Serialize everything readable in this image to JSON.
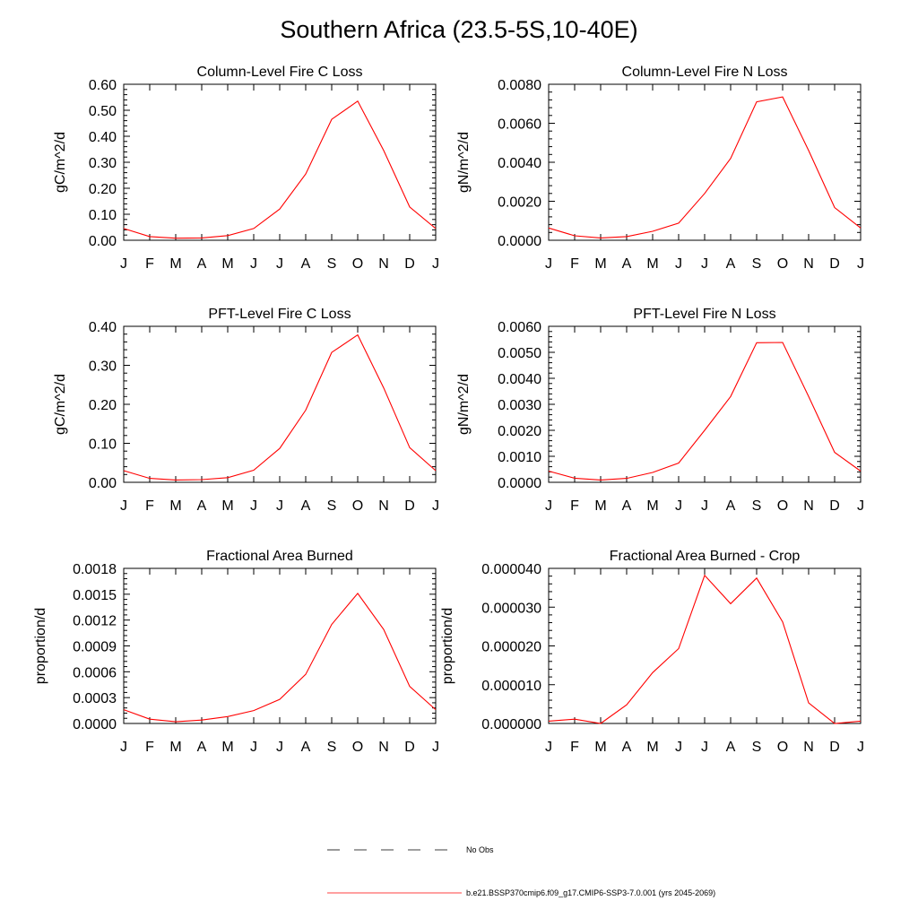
{
  "figure": {
    "title": "Southern Africa (23.5-5S,10-40E)",
    "line_color": "#ff0000",
    "obs_color": "#000000"
  },
  "legend": {
    "items": [
      {
        "label": "No Obs",
        "style": "dashed"
      },
      {
        "label": "b.e21.BSSP370cmip6.f09_g17.CMIP6-SSP3-7.0.001 (yrs 2045-2069)",
        "style": "solid-red"
      }
    ]
  },
  "chart_data": [
    {
      "type": "line",
      "title": "Column-Level Fire C Loss",
      "ylabel": "gC/m^2/d",
      "xlabel": "",
      "categories": [
        "J",
        "F",
        "M",
        "A",
        "M",
        "J",
        "J",
        "A",
        "S",
        "O",
        "N",
        "D",
        "J"
      ],
      "ylim": [
        0,
        0.6
      ],
      "yticks": [
        "0.00",
        "0.10",
        "0.20",
        "0.30",
        "0.40",
        "0.50",
        "0.60"
      ],
      "series": [
        {
          "values": [
            0.045,
            0.014,
            0.008,
            0.009,
            0.018,
            0.045,
            0.12,
            0.255,
            0.465,
            0.535,
            0.345,
            0.128,
            0.045
          ]
        }
      ]
    },
    {
      "type": "line",
      "title": "Column-Level Fire N Loss",
      "ylabel": "gN/m^2/d",
      "xlabel": "",
      "categories": [
        "J",
        "F",
        "M",
        "A",
        "M",
        "J",
        "J",
        "A",
        "S",
        "O",
        "N",
        "D",
        "J"
      ],
      "ylim": [
        0,
        0.008
      ],
      "yticks": [
        "0.0000",
        "0.0020",
        "0.0040",
        "0.0060",
        "0.0080"
      ],
      "series": [
        {
          "values": [
            0.00063,
            0.00023,
            0.00012,
            0.00019,
            0.00046,
            0.00088,
            0.0024,
            0.0042,
            0.0071,
            0.00735,
            0.0046,
            0.00168,
            0.00063
          ]
        }
      ]
    },
    {
      "type": "line",
      "title": "PFT-Level Fire C Loss",
      "ylabel": "gC/m^2/d",
      "xlabel": "",
      "categories": [
        "J",
        "F",
        "M",
        "A",
        "M",
        "J",
        "J",
        "A",
        "S",
        "O",
        "N",
        "D",
        "J"
      ],
      "ylim": [
        0,
        0.4
      ],
      "yticks": [
        "0.00",
        "0.10",
        "0.20",
        "0.30",
        "0.40"
      ],
      "series": [
        {
          "values": [
            0.03,
            0.01,
            0.006,
            0.007,
            0.012,
            0.031,
            0.087,
            0.185,
            0.333,
            0.378,
            0.242,
            0.089,
            0.03
          ]
        }
      ]
    },
    {
      "type": "line",
      "title": "PFT-Level Fire N Loss",
      "ylabel": "gN/m^2/d",
      "xlabel": "",
      "categories": [
        "J",
        "F",
        "M",
        "A",
        "M",
        "J",
        "J",
        "A",
        "S",
        "O",
        "N",
        "D",
        "J"
      ],
      "ylim": [
        0,
        0.006
      ],
      "yticks": [
        "0.0000",
        "0.0010",
        "0.0020",
        "0.0030",
        "0.0040",
        "0.0050",
        "0.0060"
      ],
      "series": [
        {
          "values": [
            0.00043,
            0.00016,
            9e-05,
            0.00015,
            0.00038,
            0.00074,
            0.002,
            0.0033,
            0.00537,
            0.00538,
            0.0033,
            0.00115,
            0.00043
          ]
        }
      ]
    },
    {
      "type": "line",
      "title": "Fractional Area Burned",
      "ylabel": "proportion/d",
      "xlabel": "",
      "categories": [
        "J",
        "F",
        "M",
        "A",
        "M",
        "J",
        "J",
        "A",
        "S",
        "O",
        "N",
        "D",
        "J"
      ],
      "ylim": [
        0,
        0.0018
      ],
      "yticks": [
        "0.0000",
        "0.0003",
        "0.0006",
        "0.0009",
        "0.0012",
        "0.0015",
        "0.0018"
      ],
      "series": [
        {
          "values": [
            0.00016,
            5e-05,
            2e-05,
            4e-05,
            8e-05,
            0.00015,
            0.00028,
            0.00057,
            0.00115,
            0.00151,
            0.00109,
            0.00043,
            0.00016
          ]
        }
      ]
    },
    {
      "type": "line",
      "title": "Fractional Area Burned - Crop",
      "ylabel": "proportion/d",
      "xlabel": "",
      "categories": [
        "J",
        "F",
        "M",
        "A",
        "M",
        "J",
        "J",
        "A",
        "S",
        "O",
        "N",
        "D",
        "J"
      ],
      "ylim": [
        0,
        4e-05
      ],
      "yticks": [
        "0.000000",
        "0.000010",
        "0.000020",
        "0.000030",
        "0.000040"
      ],
      "series": [
        {
          "values": [
            6e-07,
            1.1e-06,
            0.0,
            4.8e-06,
            1.31e-05,
            1.93e-05,
            3.82e-05,
            3.09e-05,
            3.75e-05,
            2.62e-05,
            5.3e-06,
            0.0,
            6e-07
          ]
        }
      ]
    }
  ]
}
